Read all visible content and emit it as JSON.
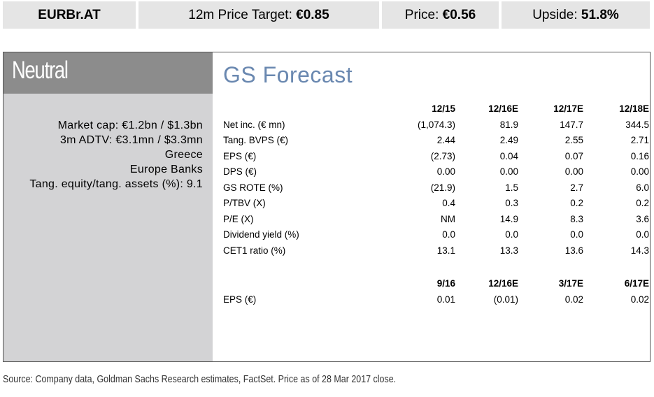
{
  "topbar": {
    "ticker": "EURBr.AT",
    "target_label": "12m Price Target: ",
    "target_value": "€0.85",
    "price_label": "Price: ",
    "price_value": "€0.56",
    "upside_label": "Upside: ",
    "upside_value": "51.8%"
  },
  "left_panel": {
    "rating": "Neutral",
    "stats": [
      "Market cap: €1.2bn / $1.3bn",
      "3m ADTV: €3.1mn / $3.3mn",
      "Greece",
      "Europe Banks",
      "Tang. equity/tang. assets (%): 9.1"
    ]
  },
  "forecast": {
    "title": "GS Forecast",
    "annual": {
      "headers": [
        "12/15",
        "12/16E",
        "12/17E",
        "12/18E"
      ],
      "rows": [
        {
          "label": "Net inc. (€ mn)",
          "values": [
            "(1,074.3)",
            "81.9",
            "147.7",
            "344.5"
          ]
        },
        {
          "label": "Tang. BVPS (€)",
          "values": [
            "2.44",
            "2.49",
            "2.55",
            "2.71"
          ]
        },
        {
          "label": "EPS (€)",
          "values": [
            "(2.73)",
            "0.04",
            "0.07",
            "0.16"
          ]
        },
        {
          "label": "DPS (€)",
          "values": [
            "0.00",
            "0.00",
            "0.00",
            "0.00"
          ]
        },
        {
          "label": "GS ROTE (%)",
          "values": [
            "(21.9)",
            "1.5",
            "2.7",
            "6.0"
          ]
        },
        {
          "label": "P/TBV (X)",
          "values": [
            "0.4",
            "0.3",
            "0.2",
            "0.2"
          ]
        },
        {
          "label": "P/E (X)",
          "values": [
            "NM",
            "14.9",
            "8.3",
            "3.6"
          ]
        },
        {
          "label": "Dividend yield (%)",
          "values": [
            "0.0",
            "0.0",
            "0.0",
            "0.0"
          ]
        },
        {
          "label": "CET1 ratio (%)",
          "values": [
            "13.1",
            "13.3",
            "13.6",
            "14.3"
          ]
        }
      ]
    },
    "quarterly": {
      "headers": [
        "9/16",
        "12/16E",
        "3/17E",
        "6/17E"
      ],
      "rows": [
        {
          "label": "EPS (€)",
          "values": [
            "0.01",
            "(0.01)",
            "0.02",
            "0.02"
          ]
        }
      ]
    }
  },
  "source": "Source: Company data, Goldman Sachs Research estimates, FactSet. Price as of 28 Mar 2017 close."
}
